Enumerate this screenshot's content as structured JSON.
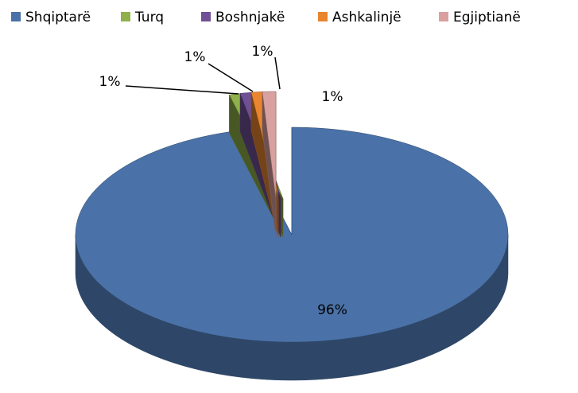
{
  "chart_data": {
    "type": "pie3d",
    "categories": [
      "Shqiptarë",
      "Turq",
      "Boshnjakë",
      "Ashkalinjë",
      "Egjiptianë"
    ],
    "values": [
      96,
      1,
      1,
      1,
      1
    ],
    "value_labels": [
      "96%",
      "1%",
      "1%",
      "1%",
      "1%"
    ],
    "colors": [
      "#4a72a8",
      "#8fb04a",
      "#6f4f95",
      "#e8852e",
      "#d9a0a0"
    ],
    "legend": "top"
  }
}
